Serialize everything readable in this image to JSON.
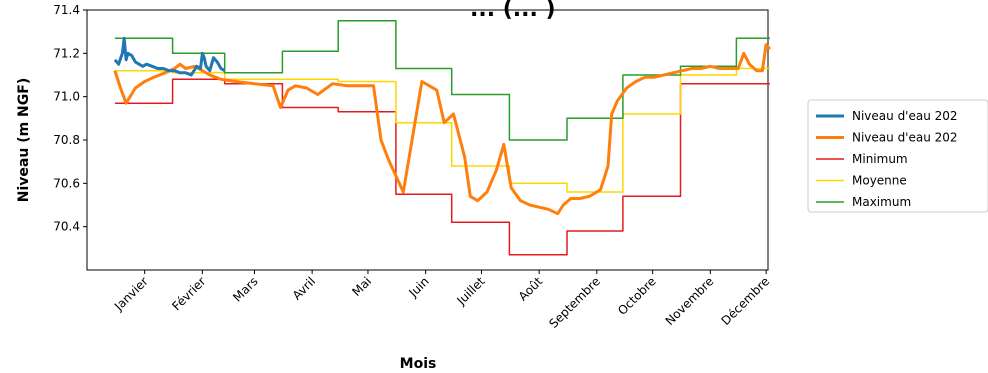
{
  "chart_data": {
    "type": "line",
    "title": "... (... )",
    "xlabel": "Mois",
    "ylabel": "Niveau (m NGF)",
    "xlim": [
      0,
      366
    ],
    "ylim": [
      70.2,
      71.4
    ],
    "y_ticks": [
      "71.4",
      "71.2",
      "71.0",
      "70.8",
      "70.6",
      "70.4"
    ],
    "y_tick_values": [
      71.4,
      71.2,
      71.0,
      70.8,
      70.6,
      70.4
    ],
    "month_ticks": [
      {
        "label": "Janvier",
        "x": 31
      },
      {
        "label": "Février",
        "x": 62
      },
      {
        "label": "Mars",
        "x": 90
      },
      {
        "label": "Avril",
        "x": 121
      },
      {
        "label": "Mai",
        "x": 151
      },
      {
        "label": "Juin",
        "x": 182
      },
      {
        "label": "Juillet",
        "x": 212
      },
      {
        "label": "Août",
        "x": 243
      },
      {
        "label": "Septembre",
        "x": 274
      },
      {
        "label": "Octobre",
        "x": 304
      },
      {
        "label": "Novembre",
        "x": 335
      },
      {
        "label": "Décembre",
        "x": 365
      }
    ],
    "grid": false,
    "legend_position": "right",
    "series": [
      {
        "name": "Niveau d'eau 202",
        "color": "#1f77b4",
        "width": 3,
        "step": false,
        "x": [
          15,
          17,
          19,
          20,
          21,
          22,
          24,
          26,
          28,
          30,
          32,
          35,
          38,
          41,
          44,
          47,
          50,
          53,
          56,
          59,
          61,
          62,
          63,
          64,
          66,
          68,
          70,
          72,
          74
        ],
        "y": [
          71.17,
          71.15,
          71.2,
          71.27,
          71.17,
          71.2,
          71.19,
          71.16,
          71.15,
          71.14,
          71.15,
          71.14,
          71.13,
          71.13,
          71.12,
          71.12,
          71.11,
          71.11,
          71.1,
          71.14,
          71.13,
          71.2,
          71.18,
          71.14,
          71.12,
          71.18,
          71.16,
          71.13,
          71.12
        ]
      },
      {
        "name": "Niveau d'eau 202",
        "color": "#ff7f0e",
        "width": 3,
        "step": false,
        "x": [
          15,
          18,
          21,
          26,
          31,
          36,
          42,
          47,
          50,
          53,
          58,
          62,
          66,
          72,
          80,
          90,
          100,
          104,
          108,
          112,
          118,
          124,
          132,
          140,
          148,
          154,
          158,
          162,
          170,
          180,
          188,
          192,
          197,
          203,
          206,
          210,
          215,
          220,
          224,
          228,
          233,
          238,
          243,
          248,
          253,
          256,
          260,
          265,
          270,
          276,
          280,
          282,
          285,
          290,
          295,
          300,
          305,
          310,
          315,
          320,
          325,
          330,
          335,
          340,
          345,
          350,
          353,
          356,
          360,
          363,
          365,
          367
        ],
        "y": [
          71.12,
          71.04,
          70.97,
          71.04,
          71.07,
          71.09,
          71.11,
          71.13,
          71.15,
          71.13,
          71.14,
          71.12,
          71.1,
          71.08,
          71.07,
          71.06,
          71.05,
          70.95,
          71.03,
          71.05,
          71.04,
          71.01,
          71.06,
          71.05,
          71.05,
          71.05,
          70.8,
          70.71,
          70.56,
          71.07,
          71.03,
          70.88,
          70.92,
          70.72,
          70.54,
          70.52,
          70.56,
          70.66,
          70.78,
          70.58,
          70.52,
          70.5,
          70.49,
          70.48,
          70.46,
          70.5,
          70.53,
          70.53,
          70.54,
          70.57,
          70.68,
          70.92,
          70.98,
          71.04,
          71.07,
          71.09,
          71.09,
          71.1,
          71.11,
          71.12,
          71.13,
          71.13,
          71.14,
          71.13,
          71.13,
          71.13,
          71.2,
          71.15,
          71.12,
          71.12,
          71.24,
          71.22
        ]
      },
      {
        "name": "Minimum",
        "color": "#e41a1c",
        "width": 1.5,
        "step": true,
        "x": [
          15,
          46,
          46,
          74,
          74,
          105,
          105,
          135,
          135,
          166,
          166,
          196,
          196,
          227,
          227,
          258,
          258,
          288,
          288,
          319,
          319,
          349,
          349,
          367
        ],
        "y": [
          70.97,
          70.97,
          71.08,
          71.08,
          71.06,
          71.06,
          70.95,
          70.95,
          70.93,
          70.93,
          70.55,
          70.55,
          70.42,
          70.42,
          70.27,
          70.27,
          70.38,
          70.38,
          70.54,
          70.54,
          71.06,
          71.06,
          71.06,
          71.06
        ]
      },
      {
        "name": "Moyenne",
        "color": "#ffd700",
        "width": 1.5,
        "step": true,
        "x": [
          15,
          46,
          46,
          74,
          74,
          105,
          105,
          135,
          135,
          166,
          166,
          196,
          196,
          227,
          227,
          258,
          258,
          288,
          288,
          319,
          319,
          349,
          349,
          367
        ],
        "y": [
          71.12,
          71.12,
          71.11,
          71.11,
          71.08,
          71.08,
          71.08,
          71.08,
          71.07,
          71.07,
          70.88,
          70.88,
          70.68,
          70.68,
          70.6,
          70.6,
          70.56,
          70.56,
          70.92,
          70.92,
          71.1,
          71.1,
          71.13,
          71.13
        ]
      },
      {
        "name": "Maximum",
        "color": "#2a9d2a",
        "width": 1.5,
        "step": true,
        "x": [
          15,
          46,
          46,
          74,
          74,
          105,
          105,
          135,
          135,
          166,
          166,
          196,
          196,
          227,
          227,
          258,
          258,
          288,
          288,
          319,
          319,
          349,
          349,
          367
        ],
        "y": [
          71.27,
          71.27,
          71.2,
          71.2,
          71.11,
          71.11,
          71.21,
          71.21,
          71.35,
          71.35,
          71.13,
          71.13,
          71.01,
          71.01,
          70.8,
          70.8,
          70.9,
          70.9,
          71.1,
          71.1,
          71.14,
          71.14,
          71.27,
          71.27
        ]
      }
    ]
  }
}
